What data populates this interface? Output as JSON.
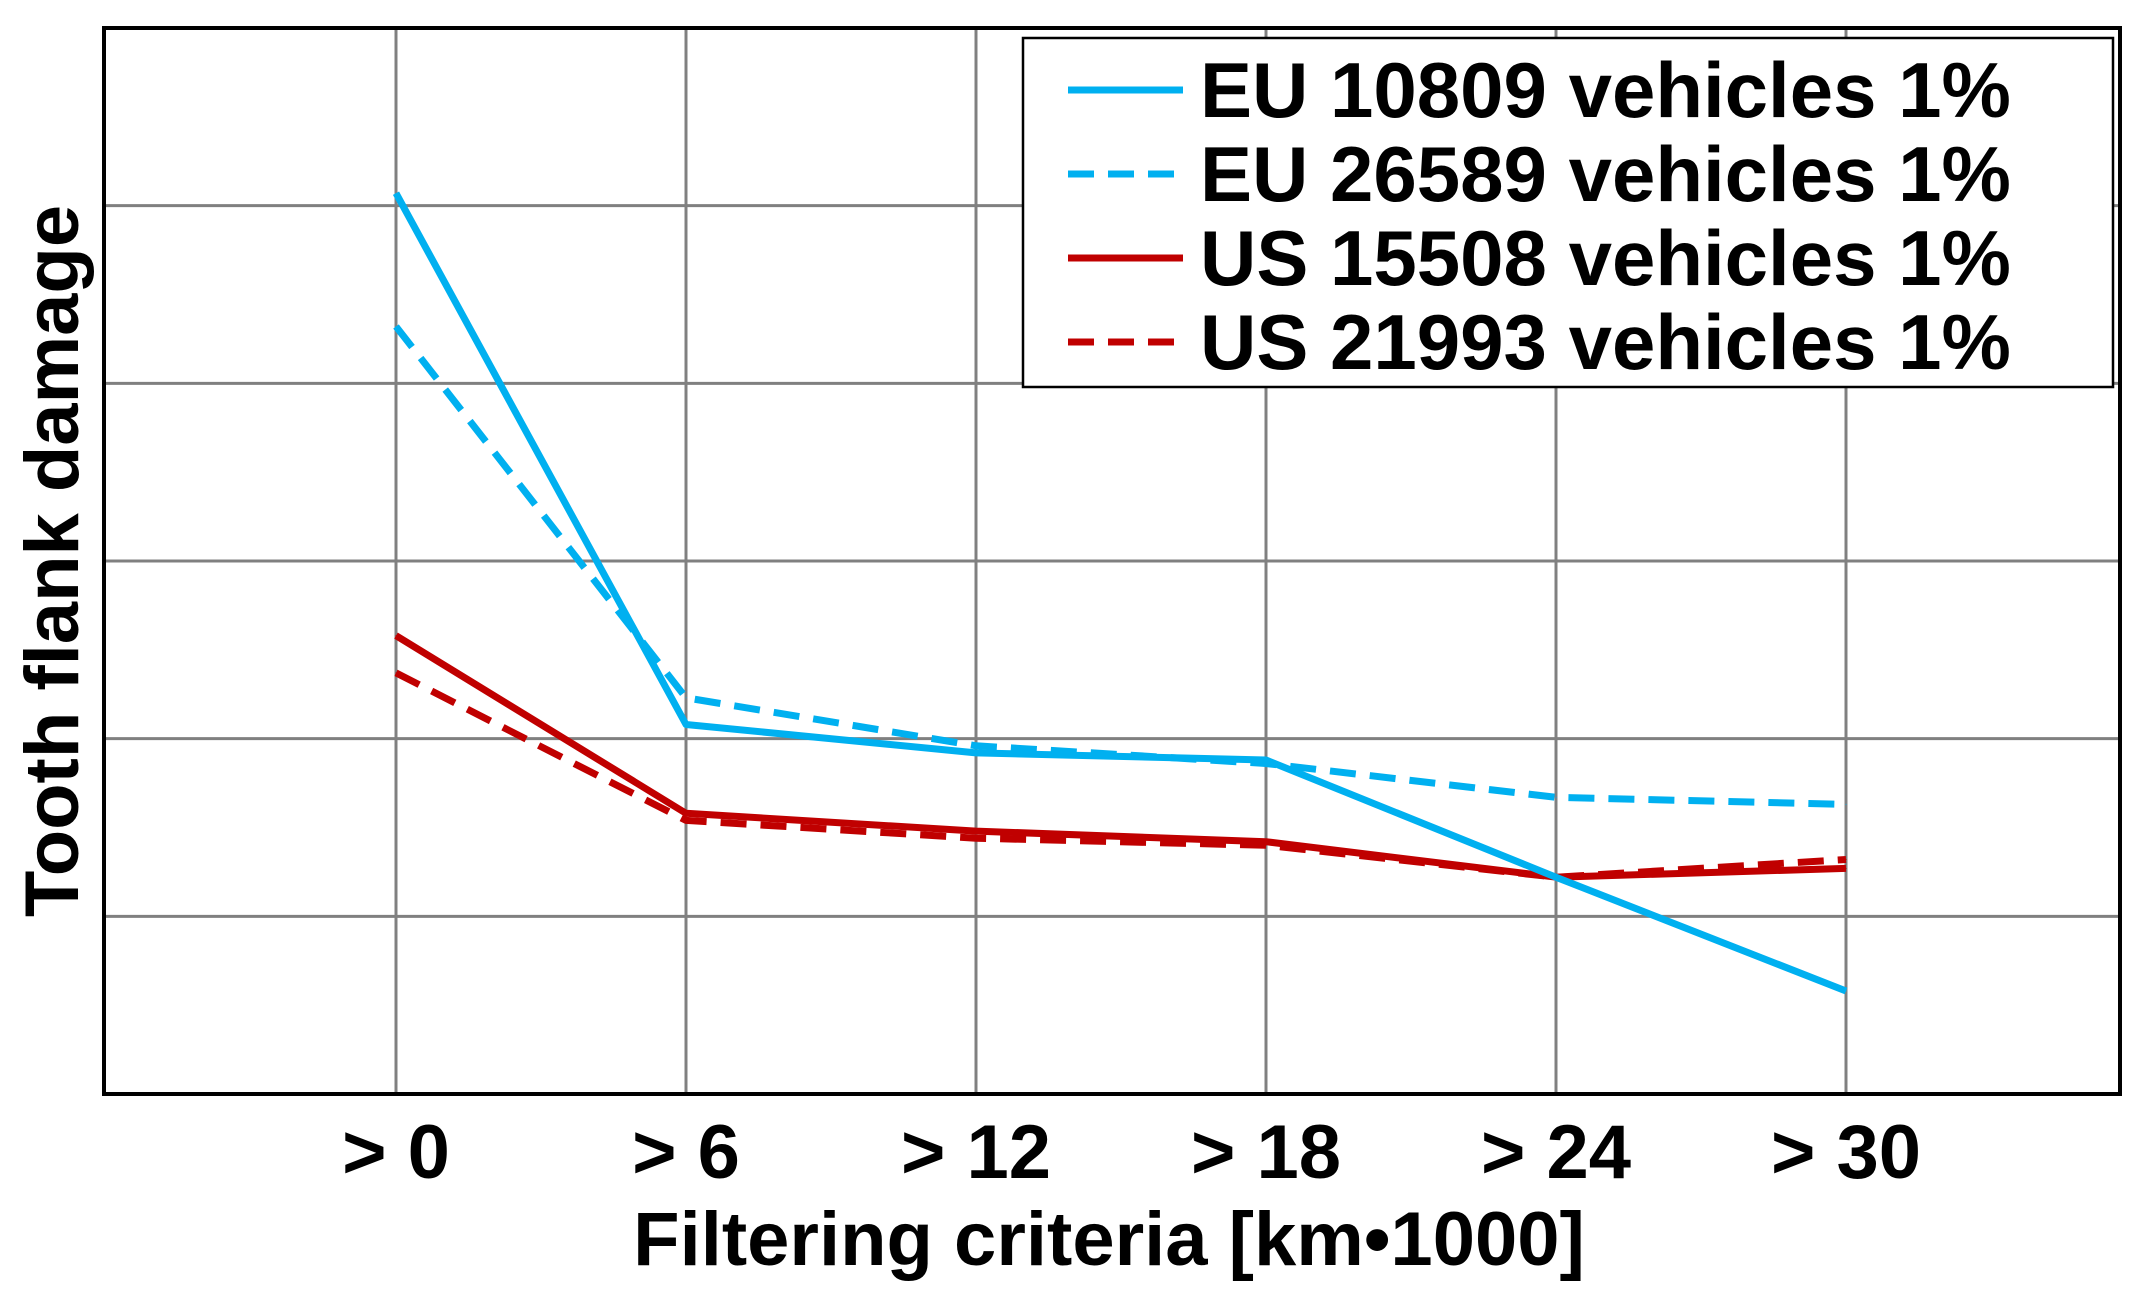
{
  "chart_data": {
    "type": "line",
    "xlabel": "Filtering criteria [km•1000]",
    "ylabel": "Tooth flank damage",
    "categories": [
      "> 0",
      "> 6",
      "> 12",
      "> 18",
      "> 24",
      "> 30"
    ],
    "ylim": [
      0,
      6
    ],
    "y_ticks_labeled": false,
    "grid": true,
    "legend": "top-right",
    "series": [
      {
        "name": "EU 10809 vehicles 1%",
        "color": "#00b0f0",
        "dash": "solid",
        "values": [
          5.07,
          2.08,
          1.92,
          1.88,
          1.22,
          0.58
        ]
      },
      {
        "name": "EU 26589 vehicles 1%",
        "color": "#00b0f0",
        "dash": "dashed",
        "values": [
          4.32,
          2.23,
          1.96,
          1.86,
          1.67,
          1.63
        ]
      },
      {
        "name": "US 15508 vehicles 1%",
        "color": "#c00000",
        "dash": "solid",
        "values": [
          2.58,
          1.58,
          1.48,
          1.42,
          1.22,
          1.27
        ]
      },
      {
        "name": "US 21993 vehicles 1%",
        "color": "#c00000",
        "dash": "dashed",
        "values": [
          2.37,
          1.54,
          1.44,
          1.4,
          1.22,
          1.32
        ]
      }
    ]
  }
}
